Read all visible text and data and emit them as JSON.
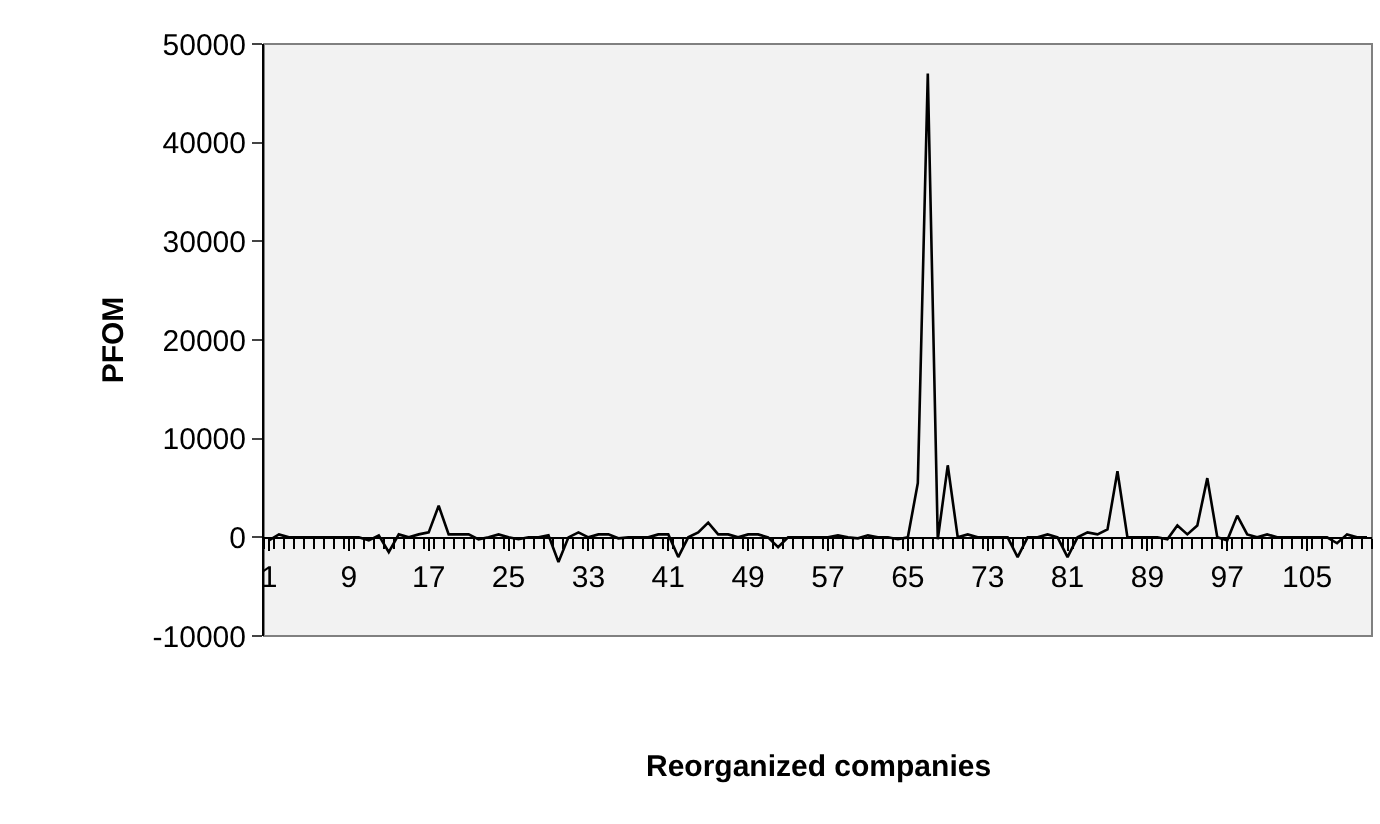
{
  "chart_data": {
    "type": "line",
    "xlabel": "Reorganized companies",
    "ylabel": "PFOM",
    "categories": [
      "1",
      null,
      null,
      null,
      null,
      null,
      null,
      null,
      "9",
      null,
      null,
      null,
      null,
      null,
      null,
      null,
      "17",
      null,
      null,
      null,
      null,
      null,
      null,
      null,
      "25",
      null,
      null,
      null,
      null,
      null,
      null,
      null,
      "33",
      null,
      null,
      null,
      null,
      null,
      null,
      null,
      "41",
      null,
      null,
      null,
      null,
      null,
      null,
      null,
      "49",
      null,
      null,
      null,
      null,
      null,
      null,
      null,
      "57",
      null,
      null,
      null,
      null,
      null,
      null,
      null,
      "65",
      null,
      null,
      null,
      null,
      null,
      null,
      null,
      "73",
      null,
      null,
      null,
      null,
      null,
      null,
      null,
      "81",
      null,
      null,
      null,
      null,
      null,
      null,
      null,
      "89",
      null,
      null,
      null,
      null,
      null,
      null,
      null,
      "97",
      null,
      null,
      null,
      null,
      null,
      null,
      null,
      "105",
      null,
      null,
      null,
      null,
      null,
      null
    ],
    "series": [
      {
        "color": "#000000",
        "values": [
          -300,
          300,
          0,
          0,
          0,
          0,
          0,
          0,
          0,
          0,
          -300,
          200,
          -1500,
          300,
          0,
          300,
          500,
          3200,
          300,
          300,
          300,
          -200,
          0,
          300,
          0,
          -200,
          0,
          0,
          200,
          -2500,
          0,
          500,
          0,
          300,
          300,
          -100,
          0,
          0,
          0,
          300,
          300,
          -2000,
          0,
          500,
          1500,
          300,
          300,
          0,
          300,
          300,
          0,
          -1000,
          0,
          0,
          0,
          0,
          0,
          200,
          0,
          -100,
          200,
          0,
          0,
          -200,
          0,
          5500,
          47000,
          -200,
          7300,
          0,
          300,
          0,
          0,
          0,
          0,
          -2000,
          0,
          0,
          300,
          0,
          -2000,
          0,
          500,
          300,
          800,
          6700,
          0,
          0,
          0,
          0,
          -200,
          1200,
          300,
          1200,
          6000,
          0,
          -300,
          2200,
          300,
          0,
          300,
          0,
          0,
          0,
          0,
          0,
          0,
          -600,
          300,
          0,
          0
        ]
      }
    ],
    "ylim": [
      -10000,
      50000
    ],
    "yticks": [
      -10000,
      0,
      10000,
      20000,
      30000,
      40000,
      50000
    ],
    "grid": false,
    "marker": "none",
    "line_style": "solid"
  }
}
